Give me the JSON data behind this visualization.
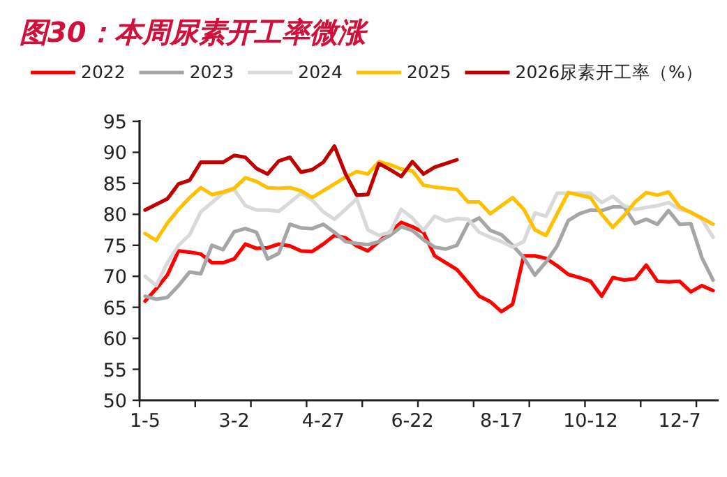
{
  "chart_data": {
    "type": "line",
    "title": "图30：本周尿素开工率微涨",
    "categories": [
      "1-5",
      null,
      null,
      null,
      null,
      null,
      null,
      null,
      "3-2",
      null,
      null,
      null,
      null,
      null,
      null,
      null,
      "4-27",
      null,
      null,
      null,
      null,
      null,
      null,
      null,
      "6-22",
      null,
      null,
      null,
      null,
      null,
      null,
      null,
      "8-17",
      null,
      null,
      null,
      null,
      null,
      null,
      null,
      "10-12",
      null,
      null,
      null,
      null,
      null,
      null,
      null,
      "12-7",
      null,
      null,
      null
    ],
    "series": [
      {
        "name": "2022",
        "color": "#ff0000",
        "values": [
          66,
          68,
          70.2,
          74.1,
          73.9,
          73.6,
          72.2,
          72.2,
          72.8,
          75.2,
          74.5,
          74.6,
          75.2,
          74.9,
          74.1,
          74,
          75.2,
          76.6,
          76.2,
          74.9,
          74.1,
          75.6,
          77.2,
          78.7,
          78,
          77.1,
          73.3,
          72.2,
          71.1,
          69,
          66.8,
          65.9,
          64.3,
          65.5,
          73.3,
          73.3,
          72.9,
          71.7,
          70.3,
          69.8,
          69.2,
          66.8,
          69.8,
          69.4,
          69.6,
          71.8,
          69.2,
          69.1,
          69.2,
          67.5,
          68.5,
          67.7
        ]
      },
      {
        "name": "2023",
        "color": "#a6a6a6",
        "values": [
          66.8,
          66.3,
          66.6,
          68.5,
          70.7,
          70.4,
          75,
          74.3,
          77.2,
          77.7,
          77.1,
          72.8,
          73.7,
          78.4,
          77.8,
          77.7,
          78.4,
          77.1,
          75.6,
          75.3,
          75.1,
          75.6,
          76.6,
          78,
          77.4,
          75.9,
          74.7,
          74.4,
          75,
          78.5,
          79.4,
          77.4,
          76.7,
          75,
          73,
          70.2,
          72.3,
          74.9,
          79,
          80.1,
          80.7,
          80.6,
          81.2,
          81.2,
          78.5,
          79.2,
          78.4,
          80.6,
          78.4,
          78.5,
          73,
          69.4
        ]
      },
      {
        "name": "2024",
        "color": "#d9d9d9",
        "values": [
          70,
          68.5,
          72.2,
          75,
          76.7,
          80.4,
          81.9,
          83.4,
          84,
          81.4,
          80.7,
          80.7,
          80.5,
          81.9,
          83.4,
          82.3,
          80.4,
          79.2,
          80.8,
          82.5,
          77.5,
          76.6,
          77.1,
          80.8,
          79.4,
          77.4,
          79.7,
          78.9,
          79.3,
          79.2,
          77.1,
          76.3,
          75.6,
          74.7,
          75.6,
          80.2,
          79.7,
          83.4,
          83.4,
          83.4,
          83.4,
          81.9,
          82.9,
          81.4,
          80.8,
          81.1,
          81.4,
          81.9,
          80.8,
          80.4,
          79.2,
          76.3
        ]
      },
      {
        "name": "2025",
        "color": "#ffc000",
        "values": [
          76.9,
          75.8,
          78.6,
          80.8,
          82.7,
          84.3,
          83.2,
          83.6,
          84.2,
          85.9,
          85.3,
          84.3,
          84.2,
          84.3,
          83.8,
          82.7,
          83.8,
          84.9,
          86,
          86.9,
          86.5,
          88.5,
          88,
          87.3,
          87,
          84.7,
          84.4,
          84.2,
          84,
          82,
          82,
          80.1,
          81.4,
          82.7,
          80.8,
          77.5,
          76.6,
          80.1,
          83.5,
          83.1,
          82.7,
          80,
          77.9,
          79.8,
          82,
          83.5,
          83.1,
          83.6,
          81.2,
          80.3,
          79.4,
          78.4
        ]
      },
      {
        "name": "2026尿素开工率（%）",
        "color": "#c00000",
        "values": [
          80.7,
          81.6,
          82.5,
          84.9,
          85.5,
          88.4,
          88.4,
          88.4,
          89.5,
          89.2,
          87.4,
          86.5,
          88.6,
          89.2,
          86.8,
          87.2,
          88.4,
          91,
          86.5,
          83.1,
          83.2,
          88.2,
          87.2,
          86.1,
          88.5,
          86.5,
          87.6,
          88.2,
          88.8,
          null,
          null,
          null,
          null,
          null,
          null,
          null,
          null,
          null,
          null,
          null,
          null,
          null,
          null,
          null,
          null,
          null,
          null,
          null,
          null,
          null,
          null,
          null
        ]
      }
    ],
    "ylim": [
      50,
      95
    ],
    "yticks": [
      50,
      55,
      60,
      65,
      70,
      75,
      80,
      85,
      90,
      95
    ],
    "legend": "top"
  }
}
